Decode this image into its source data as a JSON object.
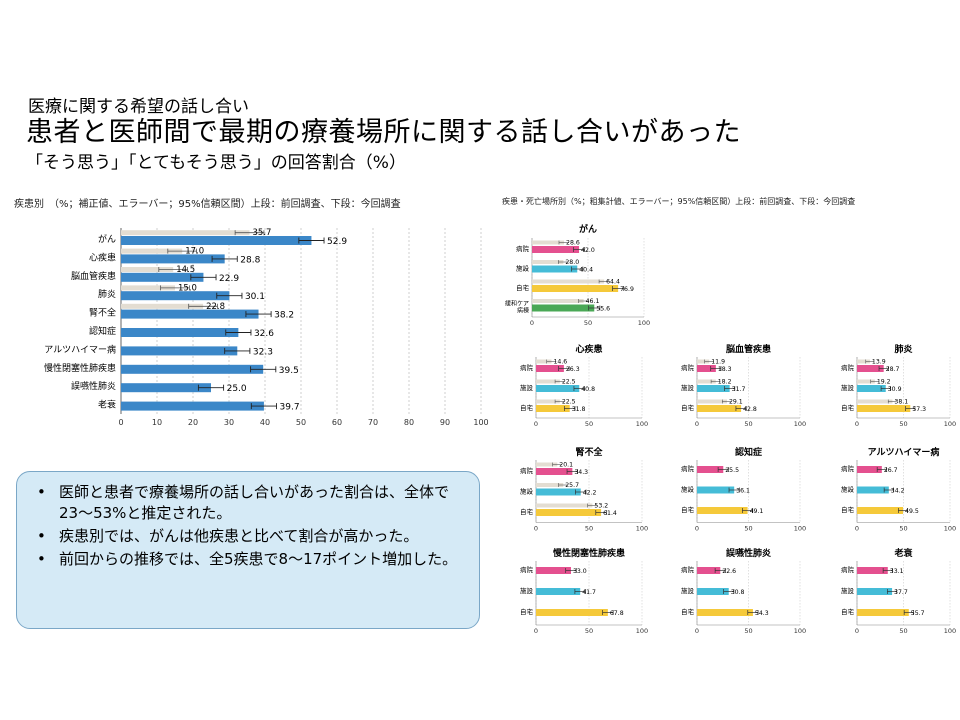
{
  "header": {
    "pre_title": "医療に関する希望の話し合い",
    "title": "患者と医師間で最期の療養場所に関する話し合いがあった",
    "subtitle": "「そう思う」「とてもそう思う」の回答割合（%）"
  },
  "left_caption": "疾患別　（%；補正値、エラーバー；95%信頼区間）上段：前回調査、下段：今回調査",
  "right_caption": "疾患・死亡場所別（%；粗集計値、エラーバー；95%信頼区間）上段：前回調査、下段：今回調査",
  "colors": {
    "current": "#3b87c8",
    "previous": "#e3ddd2",
    "hospital": "#e4508f",
    "facility": "#45bcd7",
    "home": "#f5c93a",
    "palliative": "#4aa856",
    "summary_bg": "#d5eaf6"
  },
  "summary": {
    "bullets": [
      "医師と患者で療養場所の話し合いがあった割合は、全体で23～53%と推定された。",
      "疾患別では、がんは他疾患と比べて割合が高かった。",
      "前回からの推移では、全5疾患で8～17ポイント増加した。"
    ]
  },
  "chart_data": [
    {
      "type": "bar",
      "orientation": "horizontal",
      "categories": [
        "がん",
        "心疾患",
        "脳血管疾患",
        "肺炎",
        "腎不全",
        "認知症",
        "アルツハイマー病",
        "慢性閉塞性肺疾患",
        "誤嚥性肺炎",
        "老衰"
      ],
      "series": [
        {
          "name": "前回調査",
          "values": [
            35.7,
            17.0,
            14.5,
            15.0,
            22.8,
            null,
            null,
            null,
            null,
            null
          ]
        },
        {
          "name": "今回調査",
          "values": [
            52.9,
            28.8,
            22.9,
            30.1,
            38.2,
            32.6,
            32.3,
            39.5,
            25.0,
            39.7
          ]
        }
      ],
      "xlim": [
        0,
        100
      ],
      "xticks": [
        0,
        10,
        20,
        30,
        40,
        50,
        60,
        70,
        80,
        90,
        100
      ],
      "error_bars": true,
      "grid": "vertical-dashed"
    },
    {
      "type": "bar",
      "orientation": "horizontal",
      "title": "がん",
      "categories": [
        "病院",
        "施設",
        "自宅",
        "緩和ケア病棟"
      ],
      "series": [
        {
          "name": "前回調査",
          "values": [
            28.6,
            28.0,
            64.4,
            46.1
          ]
        },
        {
          "name": "今回調査",
          "values": [
            42.0,
            40.4,
            76.9,
            55.6
          ]
        }
      ],
      "xlim": [
        0,
        100
      ],
      "xticks": [
        0,
        50,
        100
      ]
    },
    {
      "type": "bar",
      "orientation": "horizontal",
      "title": "心疾患",
      "categories": [
        "病院",
        "施設",
        "自宅"
      ],
      "series": [
        {
          "name": "前回調査",
          "values": [
            14.6,
            22.5,
            22.5
          ]
        },
        {
          "name": "今回調査",
          "values": [
            26.3,
            40.8,
            31.8
          ]
        }
      ],
      "xlim": [
        0,
        100
      ],
      "xticks": [
        0,
        50,
        100
      ]
    },
    {
      "type": "bar",
      "orientation": "horizontal",
      "title": "脳血管疾患",
      "categories": [
        "病院",
        "施設",
        "自宅"
      ],
      "series": [
        {
          "name": "前回調査",
          "values": [
            11.9,
            18.2,
            29.1
          ]
        },
        {
          "name": "今回調査",
          "values": [
            18.3,
            31.7,
            42.8
          ]
        }
      ],
      "xlim": [
        0,
        100
      ],
      "xticks": [
        0,
        50,
        100
      ]
    },
    {
      "type": "bar",
      "orientation": "horizontal",
      "title": "肺炎",
      "categories": [
        "病院",
        "施設",
        "自宅"
      ],
      "series": [
        {
          "name": "前回調査",
          "values": [
            13.9,
            19.2,
            38.1
          ]
        },
        {
          "name": "今回調査",
          "values": [
            28.7,
            30.9,
            57.3
          ]
        }
      ],
      "xlim": [
        0,
        100
      ],
      "xticks": [
        0,
        50,
        100
      ]
    },
    {
      "type": "bar",
      "orientation": "horizontal",
      "title": "腎不全",
      "categories": [
        "病院",
        "施設",
        "自宅"
      ],
      "series": [
        {
          "name": "前回調査",
          "values": [
            20.1,
            25.7,
            53.2
          ]
        },
        {
          "name": "今回調査",
          "values": [
            34.3,
            42.2,
            61.4
          ]
        }
      ],
      "xlim": [
        0,
        100
      ],
      "xticks": [
        0,
        50,
        100
      ]
    },
    {
      "type": "bar",
      "orientation": "horizontal",
      "title": "認知症",
      "categories": [
        "病院",
        "施設",
        "自宅"
      ],
      "series": [
        {
          "name": "今回調査",
          "values": [
            25.5,
            36.1,
            49.1
          ]
        }
      ],
      "xlim": [
        0,
        100
      ],
      "xticks": [
        0,
        50,
        100
      ]
    },
    {
      "type": "bar",
      "orientation": "horizontal",
      "title": "アルツハイマー病",
      "categories": [
        "病院",
        "施設",
        "自宅"
      ],
      "series": [
        {
          "name": "今回調査",
          "values": [
            26.7,
            34.2,
            49.5
          ]
        }
      ],
      "xlim": [
        0,
        100
      ],
      "xticks": [
        0,
        50,
        100
      ]
    },
    {
      "type": "bar",
      "orientation": "horizontal",
      "title": "慢性閉塞性肺疾患",
      "categories": [
        "病院",
        "施設",
        "自宅"
      ],
      "series": [
        {
          "name": "今回調査",
          "values": [
            33.0,
            41.7,
            67.8
          ]
        }
      ],
      "xlim": [
        0,
        100
      ],
      "xticks": [
        0,
        50,
        100
      ]
    },
    {
      "type": "bar",
      "orientation": "horizontal",
      "title": "誤嚥性肺炎",
      "categories": [
        "病院",
        "施設",
        "自宅"
      ],
      "series": [
        {
          "name": "今回調査",
          "values": [
            22.6,
            30.8,
            54.3
          ]
        }
      ],
      "xlim": [
        0,
        100
      ],
      "xticks": [
        0,
        50,
        100
      ]
    },
    {
      "type": "bar",
      "orientation": "horizontal",
      "title": "老衰",
      "categories": [
        "病院",
        "施設",
        "自宅"
      ],
      "series": [
        {
          "name": "今回調査",
          "values": [
            33.1,
            37.7,
            55.7
          ]
        }
      ],
      "xlim": [
        0,
        100
      ],
      "xticks": [
        0,
        50,
        100
      ]
    }
  ]
}
